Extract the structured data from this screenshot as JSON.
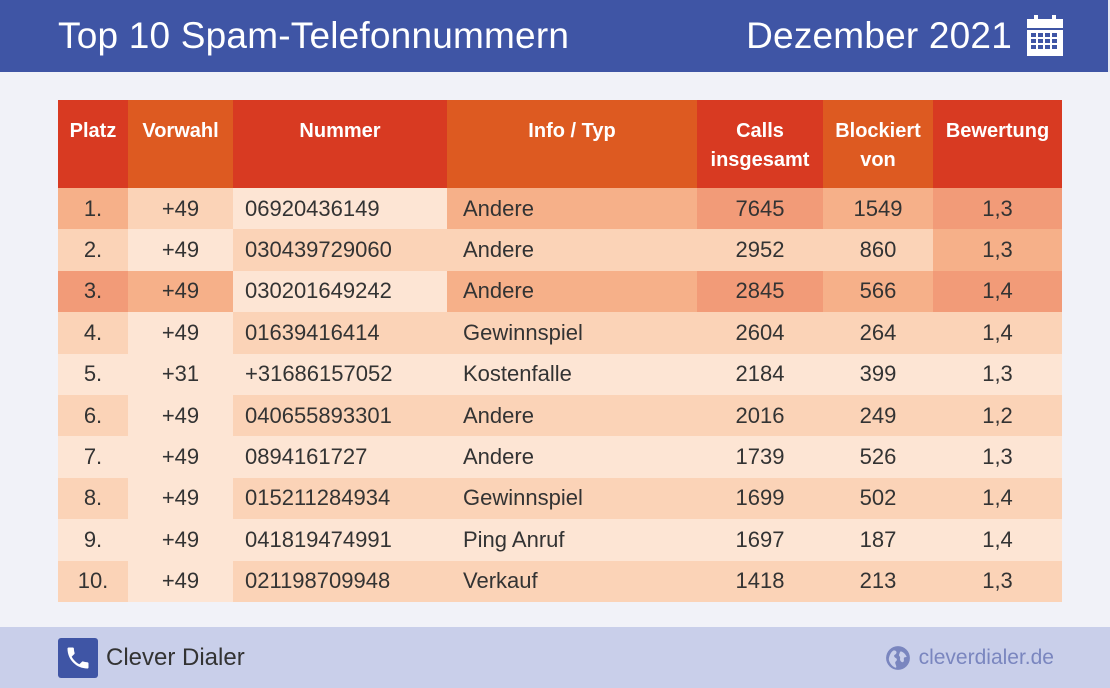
{
  "header": {
    "title": "Top 10 Spam-Telefonnummern",
    "month": "Dezember 2021",
    "icon": "calendar-icon"
  },
  "colors": {
    "header_bg": "#3f55a5",
    "footer_bg": "#c9cfea",
    "header_red": "#d83a22",
    "header_orange": "#dd5a21",
    "row_strong": "#f29b78",
    "row_mid": "#f6b089",
    "row_light": "#fbd3b7",
    "row_pale": "#fde5d4"
  },
  "chart_data": {
    "type": "table",
    "title": "Top 10 Spam-Telefonnummern",
    "subtitle": "Dezember 2021",
    "columns": [
      {
        "key": "platz",
        "label": "Platz"
      },
      {
        "key": "vorwahl",
        "label": "Vorwahl"
      },
      {
        "key": "nummer",
        "label": "Nummer"
      },
      {
        "key": "info",
        "label": "Info / Typ"
      },
      {
        "key": "calls",
        "label": "Calls insgesamt"
      },
      {
        "key": "blockiert",
        "label": "Blockiert von"
      },
      {
        "key": "bewertung",
        "label": "Bewertung"
      }
    ],
    "rows": [
      {
        "platz": "1.",
        "vorwahl": "+49",
        "nummer": "06920436149",
        "info": "Andere",
        "calls": 7645,
        "blockiert": 1549,
        "bewertung": "1,3"
      },
      {
        "platz": "2.",
        "vorwahl": "+49",
        "nummer": "030439729060",
        "info": "Andere",
        "calls": 2952,
        "blockiert": 860,
        "bewertung": "1,3"
      },
      {
        "platz": "3.",
        "vorwahl": "+49",
        "nummer": "030201649242",
        "info": "Andere",
        "calls": 2845,
        "blockiert": 566,
        "bewertung": "1,4"
      },
      {
        "platz": "4.",
        "vorwahl": "+49",
        "nummer": "01639416414",
        "info": "Gewinnspiel",
        "calls": 2604,
        "blockiert": 264,
        "bewertung": "1,4"
      },
      {
        "platz": "5.",
        "vorwahl": "+31",
        "nummer": "+31686157052",
        "info": "Kostenfalle",
        "calls": 2184,
        "blockiert": 399,
        "bewertung": "1,3"
      },
      {
        "platz": "6.",
        "vorwahl": "+49",
        "nummer": "040655893301",
        "info": "Andere",
        "calls": 2016,
        "blockiert": 249,
        "bewertung": "1,2"
      },
      {
        "platz": "7.",
        "vorwahl": "+49",
        "nummer": "0894161727",
        "info": "Andere",
        "calls": 1739,
        "blockiert": 526,
        "bewertung": "1,3"
      },
      {
        "platz": "8.",
        "vorwahl": "+49",
        "nummer": "015211284934",
        "info": "Gewinnspiel",
        "calls": 1699,
        "blockiert": 502,
        "bewertung": "1,4"
      },
      {
        "platz": "9.",
        "vorwahl": "+49",
        "nummer": "041819474991",
        "info": "Ping Anruf",
        "calls": 1697,
        "blockiert": 187,
        "bewertung": "1,4"
      },
      {
        "platz": "10.",
        "vorwahl": "+49",
        "nummer": "021198709948",
        "info": "Verkauf",
        "calls": 1418,
        "blockiert": 213,
        "bewertung": "1,3"
      }
    ]
  },
  "footer": {
    "brand": "Clever Dialer",
    "brand_icon": "phone-icon",
    "website": "cleverdialer.de",
    "website_icon": "globe-icon"
  }
}
